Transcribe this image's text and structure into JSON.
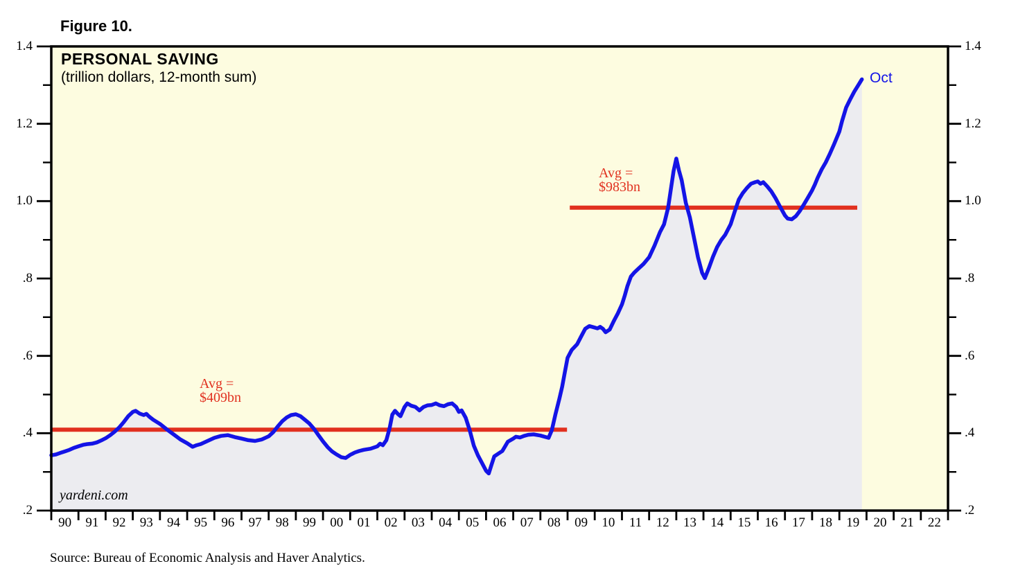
{
  "figure_label": "Figure 10.",
  "watermark": "yardeni.com",
  "source": "Source: Bureau of Economic Analysis and Haver Analytics.",
  "colors": {
    "plot_bg": "#FDFCE0",
    "fill": "#ECECF0",
    "blue": "#1414E6",
    "red": "#E1301F",
    "frame": "#000000"
  },
  "chart_data": {
    "type": "line",
    "title": "PERSONAL SAVING",
    "subtitle": "(trillion dollars, 12-month sum)",
    "xlabel": "",
    "ylabel": "",
    "grid": false,
    "legend_position": "none",
    "xlim": [
      1990,
      2023
    ],
    "ylim": [
      0.2,
      1.4
    ],
    "y_major_ticks": [
      1.4,
      1.2,
      1.0,
      0.8,
      0.6,
      0.4,
      0.2
    ],
    "y_tick_labels": [
      "1.4",
      "1.2",
      "1.0",
      ".8",
      ".6",
      ".4",
      ".2"
    ],
    "y_minor_ticks": [
      1.3,
      1.1,
      0.9,
      0.7,
      0.5,
      0.3
    ],
    "x_labels": [
      "90",
      "91",
      "92",
      "93",
      "94",
      "95",
      "96",
      "97",
      "98",
      "99",
      "00",
      "01",
      "02",
      "03",
      "04",
      "05",
      "06",
      "07",
      "08",
      "09",
      "10",
      "11",
      "12",
      "13",
      "14",
      "15",
      "16",
      "17",
      "18",
      "19",
      "20",
      "21",
      "22"
    ],
    "avg_lines": [
      {
        "label_line1": "Avg =",
        "label_line2": "$409bn",
        "value": 0.409,
        "x_start": 1990.0,
        "x_end": 2008.98,
        "label_x": 1995.45,
        "label_y": 0.545
      },
      {
        "label_line1": "Avg =",
        "label_line2": "$983bn",
        "value": 0.983,
        "x_start": 2009.08,
        "x_end": 2019.66,
        "label_x": 2010.15,
        "label_y": 1.09
      }
    ],
    "last_point": {
      "x": 2019.83,
      "y": 1.315,
      "label": "Oct"
    },
    "series": [
      {
        "name": "Personal saving, 12-month sum (trillion dollars)",
        "color": "#1414E6",
        "points": [
          [
            1990,
            0.343
          ],
          [
            1990.17,
            0.345
          ],
          [
            1990.33,
            0.349
          ],
          [
            1990.5,
            0.353
          ],
          [
            1990.67,
            0.357
          ],
          [
            1990.83,
            0.362
          ],
          [
            1991,
            0.366
          ],
          [
            1991.17,
            0.37
          ],
          [
            1991.33,
            0.372
          ],
          [
            1991.5,
            0.373
          ],
          [
            1991.67,
            0.376
          ],
          [
            1991.83,
            0.381
          ],
          [
            1992,
            0.387
          ],
          [
            1992.17,
            0.395
          ],
          [
            1992.33,
            0.404
          ],
          [
            1992.5,
            0.415
          ],
          [
            1992.67,
            0.429
          ],
          [
            1992.83,
            0.444
          ],
          [
            1993,
            0.455
          ],
          [
            1993.1,
            0.458
          ],
          [
            1993.25,
            0.451
          ],
          [
            1993.4,
            0.447
          ],
          [
            1993.5,
            0.45
          ],
          [
            1993.6,
            0.443
          ],
          [
            1993.75,
            0.435
          ],
          [
            1994,
            0.424
          ],
          [
            1994.25,
            0.41
          ],
          [
            1994.5,
            0.397
          ],
          [
            1994.75,
            0.384
          ],
          [
            1995,
            0.374
          ],
          [
            1995.2,
            0.365
          ],
          [
            1995.35,
            0.369
          ],
          [
            1995.5,
            0.372
          ],
          [
            1995.75,
            0.38
          ],
          [
            1996,
            0.388
          ],
          [
            1996.25,
            0.393
          ],
          [
            1996.5,
            0.395
          ],
          [
            1996.75,
            0.39
          ],
          [
            1997,
            0.386
          ],
          [
            1997.25,
            0.382
          ],
          [
            1997.5,
            0.38
          ],
          [
            1997.75,
            0.384
          ],
          [
            1998,
            0.392
          ],
          [
            1998.17,
            0.403
          ],
          [
            1998.33,
            0.417
          ],
          [
            1998.5,
            0.431
          ],
          [
            1998.67,
            0.441
          ],
          [
            1998.83,
            0.447
          ],
          [
            1999,
            0.449
          ],
          [
            1999.17,
            0.444
          ],
          [
            1999.33,
            0.435
          ],
          [
            1999.5,
            0.425
          ],
          [
            1999.67,
            0.411
          ],
          [
            1999.83,
            0.395
          ],
          [
            2000,
            0.379
          ],
          [
            2000.17,
            0.364
          ],
          [
            2000.33,
            0.353
          ],
          [
            2000.5,
            0.345
          ],
          [
            2000.67,
            0.338
          ],
          [
            2000.83,
            0.336
          ],
          [
            2001,
            0.344
          ],
          [
            2001.17,
            0.35
          ],
          [
            2001.33,
            0.354
          ],
          [
            2001.5,
            0.357
          ],
          [
            2001.75,
            0.36
          ],
          [
            2002,
            0.366
          ],
          [
            2002.1,
            0.373
          ],
          [
            2002.2,
            0.369
          ],
          [
            2002.33,
            0.382
          ],
          [
            2002.45,
            0.413
          ],
          [
            2002.55,
            0.448
          ],
          [
            2002.65,
            0.458
          ],
          [
            2002.75,
            0.45
          ],
          [
            2002.85,
            0.444
          ],
          [
            2003,
            0.468
          ],
          [
            2003.1,
            0.477
          ],
          [
            2003.25,
            0.471
          ],
          [
            2003.4,
            0.468
          ],
          [
            2003.55,
            0.459
          ],
          [
            2003.7,
            0.468
          ],
          [
            2003.85,
            0.472
          ],
          [
            2004,
            0.473
          ],
          [
            2004.15,
            0.477
          ],
          [
            2004.3,
            0.472
          ],
          [
            2004.45,
            0.47
          ],
          [
            2004.6,
            0.475
          ],
          [
            2004.75,
            0.477
          ],
          [
            2004.9,
            0.468
          ],
          [
            2005,
            0.455
          ],
          [
            2005.1,
            0.459
          ],
          [
            2005.25,
            0.44
          ],
          [
            2005.4,
            0.407
          ],
          [
            2005.55,
            0.368
          ],
          [
            2005.7,
            0.343
          ],
          [
            2005.85,
            0.323
          ],
          [
            2006,
            0.303
          ],
          [
            2006.1,
            0.296
          ],
          [
            2006.2,
            0.318
          ],
          [
            2006.3,
            0.34
          ],
          [
            2006.45,
            0.347
          ],
          [
            2006.6,
            0.354
          ],
          [
            2006.8,
            0.378
          ],
          [
            2007,
            0.386
          ],
          [
            2007.1,
            0.391
          ],
          [
            2007.25,
            0.389
          ],
          [
            2007.4,
            0.393
          ],
          [
            2007.55,
            0.396
          ],
          [
            2007.75,
            0.397
          ],
          [
            2008,
            0.394
          ],
          [
            2008.15,
            0.391
          ],
          [
            2008.3,
            0.388
          ],
          [
            2008.42,
            0.408
          ],
          [
            2008.55,
            0.448
          ],
          [
            2008.7,
            0.49
          ],
          [
            2008.8,
            0.52
          ],
          [
            2008.9,
            0.558
          ],
          [
            2009,
            0.595
          ],
          [
            2009.15,
            0.615
          ],
          [
            2009.35,
            0.63
          ],
          [
            2009.5,
            0.65
          ],
          [
            2009.65,
            0.67
          ],
          [
            2009.8,
            0.677
          ],
          [
            2009.95,
            0.674
          ],
          [
            2010.1,
            0.671
          ],
          [
            2010.2,
            0.675
          ],
          [
            2010.3,
            0.67
          ],
          [
            2010.4,
            0.661
          ],
          [
            2010.55,
            0.668
          ],
          [
            2010.7,
            0.69
          ],
          [
            2010.85,
            0.71
          ],
          [
            2011,
            0.733
          ],
          [
            2011.1,
            0.755
          ],
          [
            2011.2,
            0.78
          ],
          [
            2011.33,
            0.805
          ],
          [
            2011.45,
            0.815
          ],
          [
            2011.6,
            0.825
          ],
          [
            2011.8,
            0.838
          ],
          [
            2012,
            0.855
          ],
          [
            2012.2,
            0.885
          ],
          [
            2012.4,
            0.92
          ],
          [
            2012.55,
            0.94
          ],
          [
            2012.7,
            0.983
          ],
          [
            2012.8,
            1.03
          ],
          [
            2012.9,
            1.078
          ],
          [
            2013,
            1.11
          ],
          [
            2013.1,
            1.079
          ],
          [
            2013.2,
            1.054
          ],
          [
            2013.35,
            0.996
          ],
          [
            2013.5,
            0.958
          ],
          [
            2013.65,
            0.906
          ],
          [
            2013.8,
            0.855
          ],
          [
            2013.95,
            0.815
          ],
          [
            2014.05,
            0.801
          ],
          [
            2014.2,
            0.827
          ],
          [
            2014.35,
            0.856
          ],
          [
            2014.5,
            0.881
          ],
          [
            2014.65,
            0.899
          ],
          [
            2014.8,
            0.913
          ],
          [
            2015,
            0.94
          ],
          [
            2015.15,
            0.973
          ],
          [
            2015.3,
            1.004
          ],
          [
            2015.45,
            1.021
          ],
          [
            2015.6,
            1.034
          ],
          [
            2015.75,
            1.045
          ],
          [
            2015.9,
            1.049
          ],
          [
            2016,
            1.051
          ],
          [
            2016.1,
            1.045
          ],
          [
            2016.2,
            1.049
          ],
          [
            2016.35,
            1.038
          ],
          [
            2016.5,
            1.025
          ],
          [
            2016.65,
            1.008
          ],
          [
            2016.8,
            0.988
          ],
          [
            2017,
            0.963
          ],
          [
            2017.1,
            0.955
          ],
          [
            2017.25,
            0.953
          ],
          [
            2017.4,
            0.961
          ],
          [
            2017.55,
            0.975
          ],
          [
            2017.7,
            0.992
          ],
          [
            2017.85,
            1.01
          ],
          [
            2018,
            1.028
          ],
          [
            2018.1,
            1.043
          ],
          [
            2018.2,
            1.06
          ],
          [
            2018.35,
            1.082
          ],
          [
            2018.5,
            1.1
          ],
          [
            2018.65,
            1.122
          ],
          [
            2018.8,
            1.146
          ],
          [
            2019,
            1.18
          ],
          [
            2019.1,
            1.207
          ],
          [
            2019.25,
            1.242
          ],
          [
            2019.4,
            1.263
          ],
          [
            2019.55,
            1.283
          ],
          [
            2019.7,
            1.3
          ],
          [
            2019.83,
            1.315
          ]
        ]
      }
    ]
  }
}
